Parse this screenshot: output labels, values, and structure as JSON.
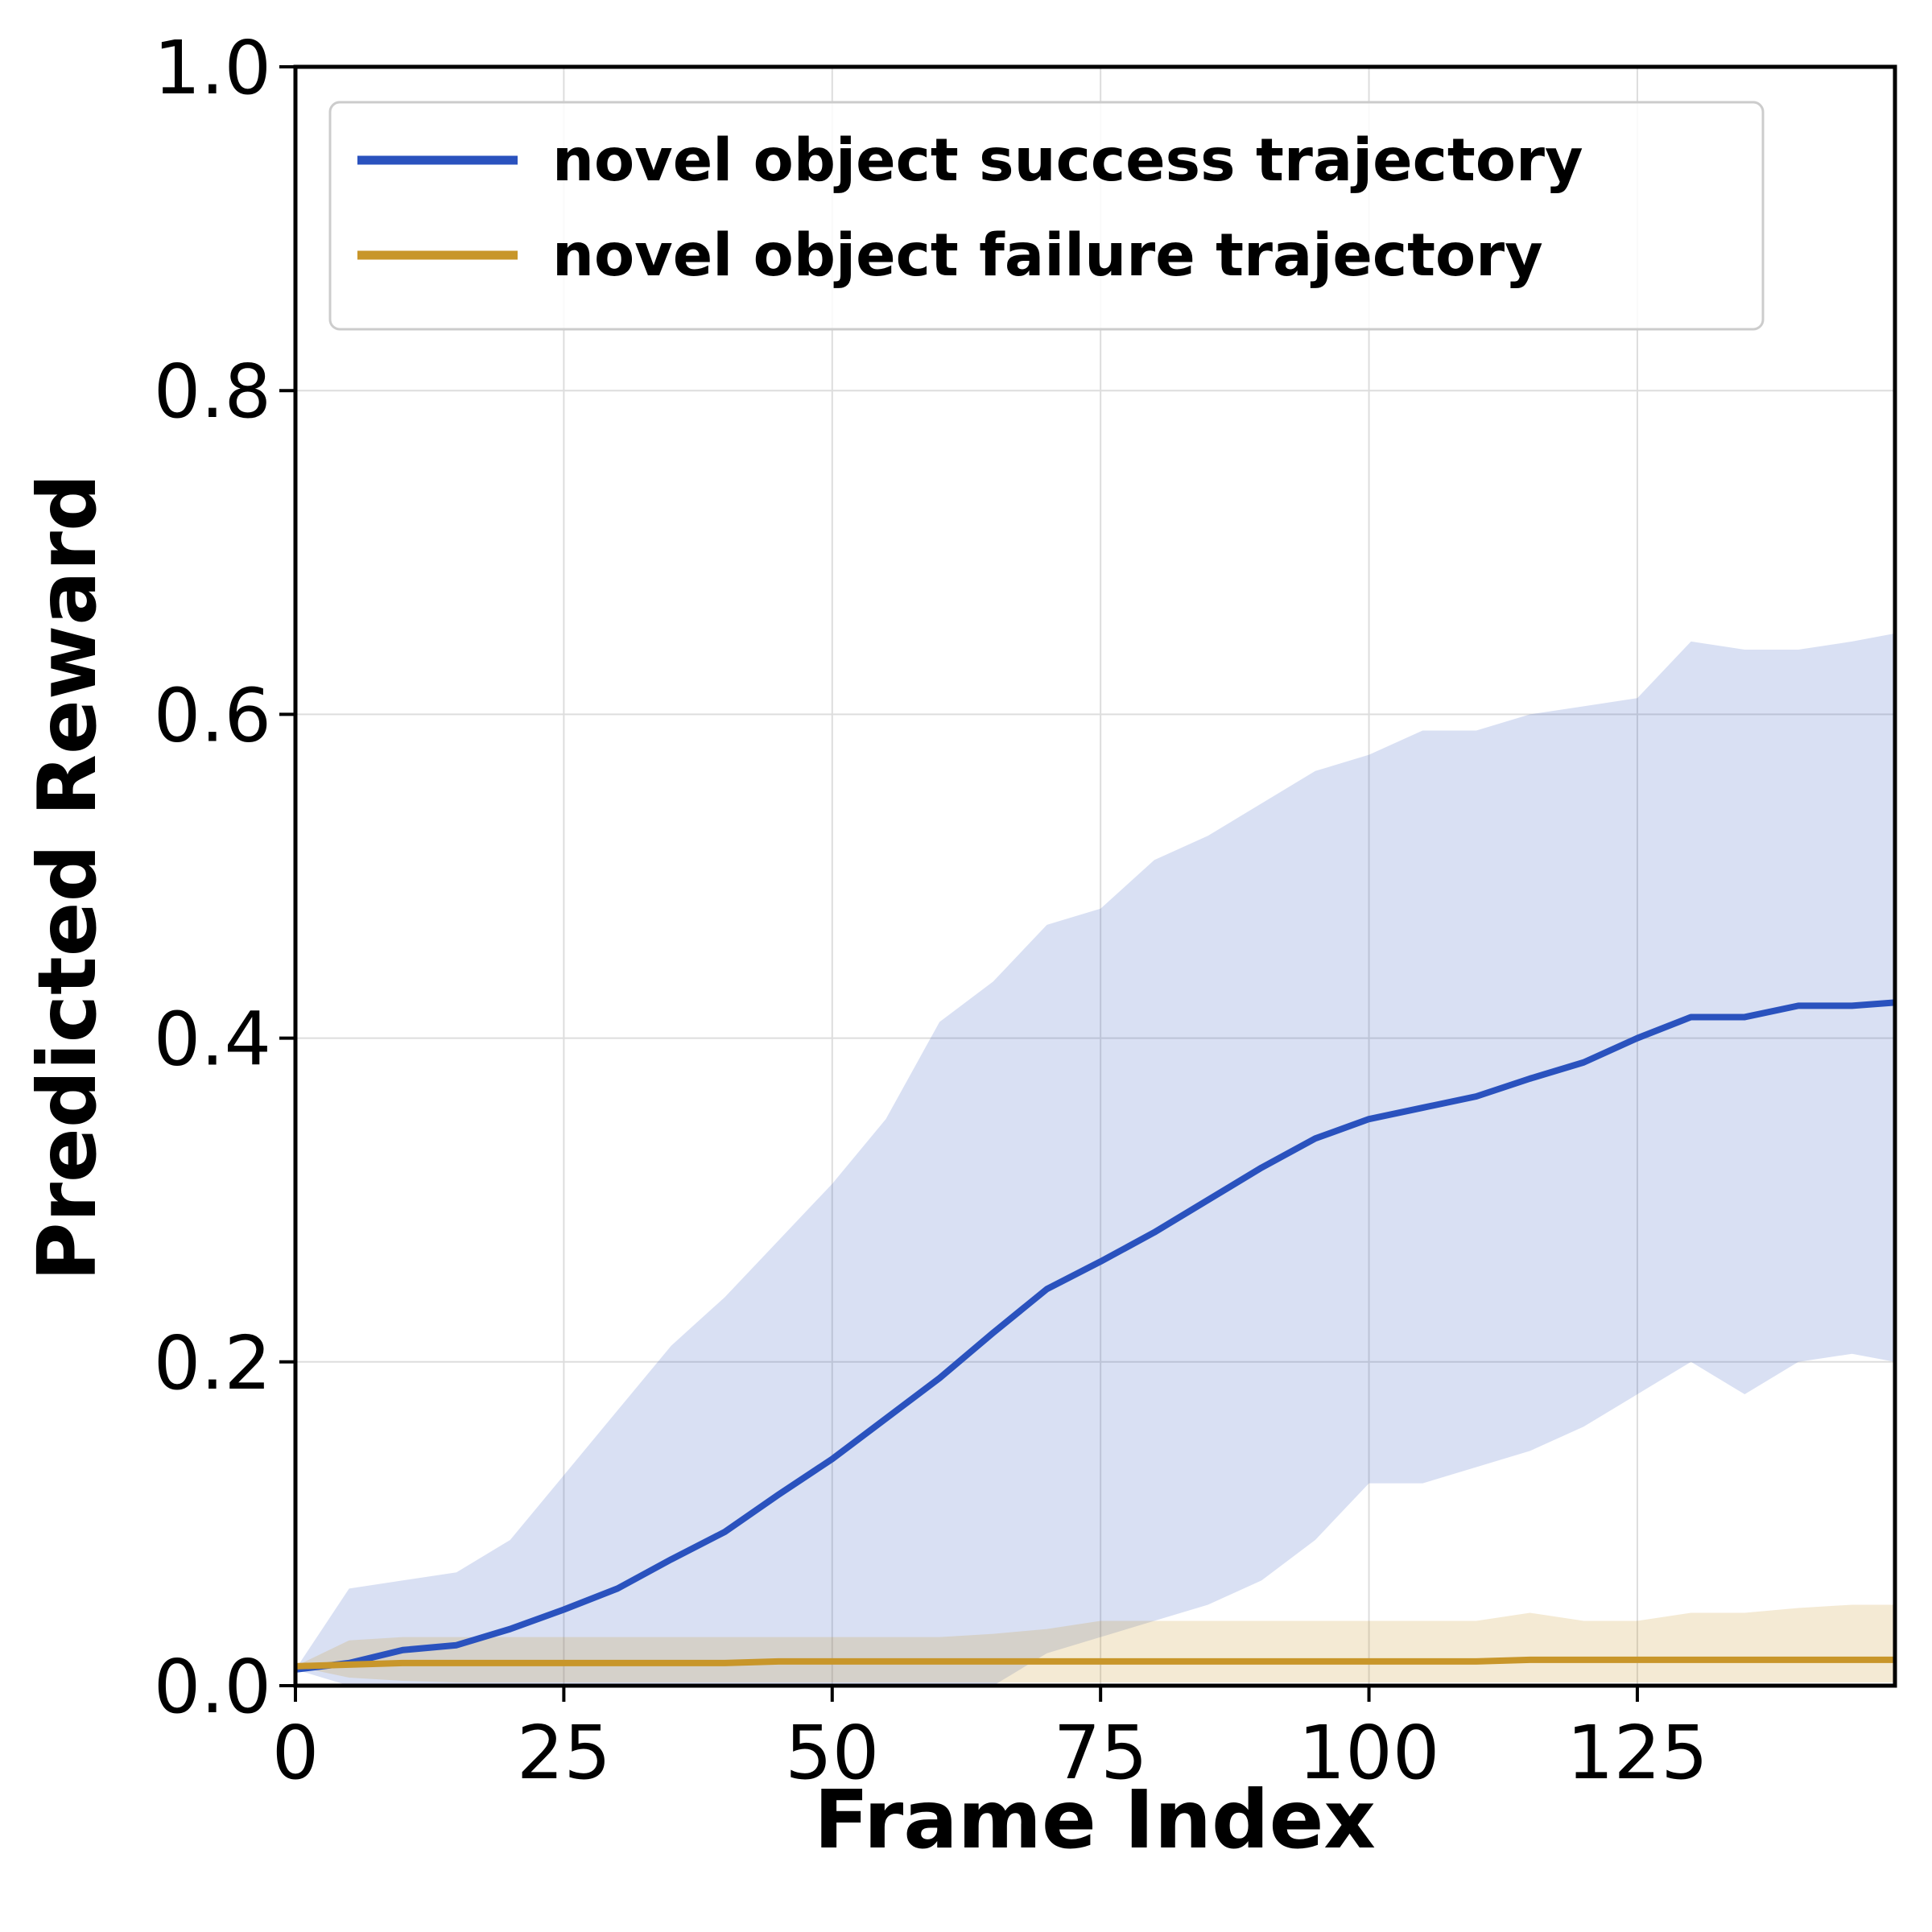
{
  "chart_data": {
    "type": "line",
    "xlabel": "Frame Index",
    "ylabel": "Predicted Reward",
    "x": [
      0,
      5,
      10,
      15,
      20,
      25,
      30,
      35,
      40,
      45,
      50,
      55,
      60,
      65,
      70,
      75,
      80,
      85,
      90,
      95,
      100,
      105,
      110,
      115,
      120,
      125,
      130,
      135,
      140,
      145,
      149
    ],
    "series": [
      {
        "name": "novel object success trajectory",
        "color": "#2a52be",
        "band_color": "rgba(42,82,190,0.18)",
        "values": [
          0.01,
          0.014,
          0.022,
          0.025,
          0.035,
          0.047,
          0.06,
          0.078,
          0.095,
          0.118,
          0.14,
          0.165,
          0.19,
          0.218,
          0.245,
          0.262,
          0.28,
          0.3,
          0.32,
          0.338,
          0.35,
          0.357,
          0.364,
          0.375,
          0.385,
          0.4,
          0.413,
          0.413,
          0.42,
          0.42,
          0.422
        ],
        "upper": [
          0.01,
          0.06,
          0.065,
          0.07,
          0.09,
          0.13,
          0.17,
          0.21,
          0.24,
          0.275,
          0.31,
          0.35,
          0.41,
          0.435,
          0.47,
          0.48,
          0.51,
          0.525,
          0.545,
          0.565,
          0.575,
          0.59,
          0.59,
          0.6,
          0.605,
          0.61,
          0.645,
          0.64,
          0.64,
          0.645,
          0.65
        ],
        "lower": [
          0.01,
          0,
          0,
          0,
          0,
          0,
          0,
          0,
          0,
          0,
          0,
          0,
          0,
          0,
          0.02,
          0.03,
          0.04,
          0.05,
          0.065,
          0.09,
          0.125,
          0.125,
          0.135,
          0.145,
          0.16,
          0.18,
          0.2,
          0.18,
          0.2,
          0.205,
          0.2
        ]
      },
      {
        "name": "novel object failure trajectory",
        "color": "#c8962a",
        "band_color": "rgba(200,150,42,0.2)",
        "values": [
          0.012,
          0.013,
          0.014,
          0.014,
          0.014,
          0.014,
          0.014,
          0.014,
          0.014,
          0.015,
          0.015,
          0.015,
          0.015,
          0.015,
          0.015,
          0.015,
          0.015,
          0.015,
          0.015,
          0.015,
          0.015,
          0.015,
          0.015,
          0.016,
          0.016,
          0.016,
          0.016,
          0.016,
          0.016,
          0.016,
          0.016
        ],
        "upper": [
          0.012,
          0.028,
          0.03,
          0.03,
          0.03,
          0.03,
          0.03,
          0.03,
          0.03,
          0.03,
          0.03,
          0.03,
          0.03,
          0.032,
          0.035,
          0.04,
          0.04,
          0.04,
          0.04,
          0.04,
          0.04,
          0.04,
          0.04,
          0.045,
          0.04,
          0.04,
          0.045,
          0.045,
          0.048,
          0.05,
          0.05
        ],
        "lower": [
          0.012,
          0.005,
          0.003,
          0.002,
          0.002,
          0.002,
          0.002,
          0.002,
          0.002,
          0.002,
          0.002,
          0.002,
          0.002,
          0.002,
          0.002,
          0.002,
          0.002,
          0.002,
          0.002,
          0.002,
          0.002,
          0.002,
          0.002,
          0.002,
          0.002,
          0.002,
          0.002,
          0.002,
          0.002,
          0.002,
          0.002
        ]
      }
    ],
    "xlim": [
      0,
      149
    ],
    "ylim": [
      0,
      1
    ],
    "xticks": [
      0,
      25,
      50,
      75,
      100,
      125
    ],
    "yticks": [
      {
        "value": 0,
        "label": "0.0"
      },
      0.2,
      0.4,
      0.6,
      0.8,
      {
        "value": 1,
        "label": "1.0"
      }
    ],
    "grid": true
  }
}
